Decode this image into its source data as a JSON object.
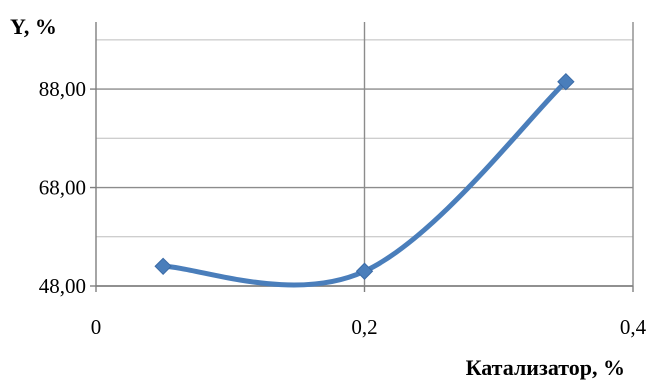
{
  "chart_data": {
    "type": "line",
    "title": "",
    "xlabel": "Катализатор, %",
    "ylabel": "Y, %",
    "x": [
      0.05,
      0.2,
      0.35
    ],
    "series": [
      {
        "values": [
          52.0,
          51.0,
          89.5
        ],
        "color": "#4a7ebb",
        "marker": "diamond",
        "smooth": true
      }
    ],
    "xlim": [
      0,
      0.4
    ],
    "ylim": [
      48,
      100
    ],
    "x_ticks": [
      0,
      0.2,
      0.4
    ],
    "x_tick_labels": [
      "0",
      "0,2",
      "0,4"
    ],
    "y_ticks": [
      48,
      68,
      88
    ],
    "y_tick_labels": [
      "48,00",
      "68,00",
      "88,00"
    ],
    "grid": {
      "major": true,
      "minor_y": true
    },
    "legend": "none"
  }
}
